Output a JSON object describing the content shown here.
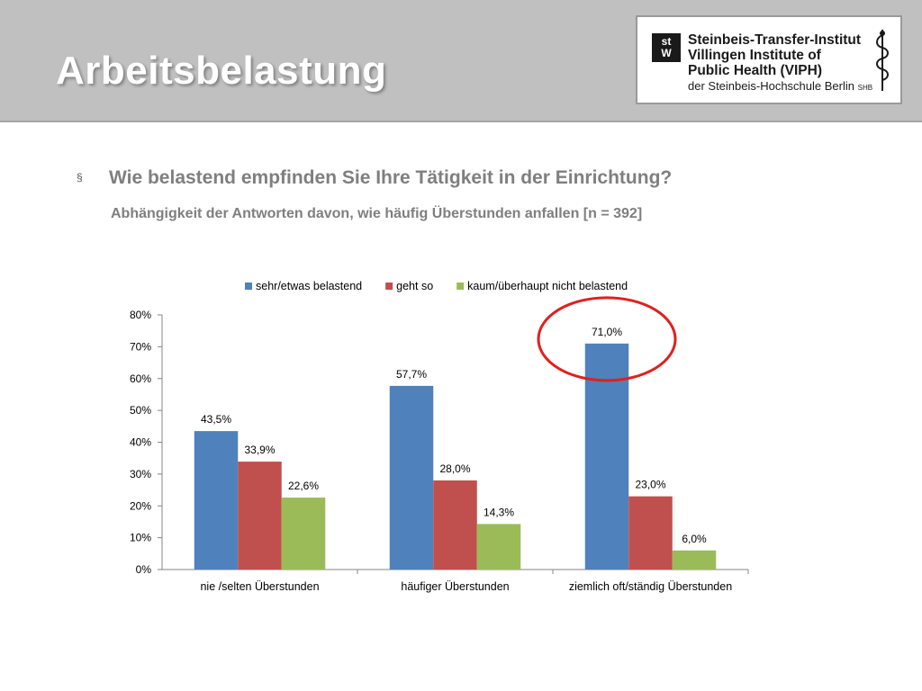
{
  "slide": {
    "title": "Arbeitsbelastung",
    "bullet_glyph": "§",
    "question": "Wie belastend empfinden Sie Ihre Tätigkeit in der Einrichtung?",
    "subtitle": "Abhängigkeit der Antworten davon, wie häufig Überstunden anfallen  [n = 392]"
  },
  "logo": {
    "mark_top": "st",
    "mark_bottom": "W",
    "line1": "Steinbeis-Transfer-Institut",
    "line2": "Villingen Institute of",
    "line3": "Public Health (VIPH)",
    "line4": "der Steinbeis-Hochschule Berlin",
    "line4_suffix": "SHB"
  },
  "chart_data": {
    "type": "bar",
    "categories": [
      "nie /selten Überstunden",
      "häufiger Überstunden",
      "ziemlich oft/ständig Überstunden"
    ],
    "series": [
      {
        "name": "sehr/etwas belastend",
        "values": [
          43.5,
          57.7,
          71.0
        ],
        "labels": [
          "43,5%",
          "57,7%",
          "71,0%"
        ],
        "color": "#4f81bd"
      },
      {
        "name": "geht so",
        "values": [
          33.9,
          28.0,
          23.0
        ],
        "labels": [
          "33,9%",
          "28,0%",
          "23,0%"
        ],
        "color": "#c0504d"
      },
      {
        "name": "kaum/überhaupt nicht belastend",
        "values": [
          22.6,
          14.3,
          6.0
        ],
        "labels": [
          "22,6%",
          "14,3%",
          "6,0%"
        ],
        "color": "#9bbb59"
      }
    ],
    "yticks": [
      0,
      10,
      20,
      30,
      40,
      50,
      60,
      70,
      80
    ],
    "ytick_labels": [
      "0%",
      "10%",
      "20%",
      "30%",
      "40%",
      "50%",
      "60%",
      "70%",
      "80%"
    ],
    "ylim": [
      0,
      80
    ],
    "grid": false,
    "legend_position": "top",
    "highlight": {
      "category_index": 2,
      "series_index": 0,
      "color": "#e02020"
    }
  }
}
